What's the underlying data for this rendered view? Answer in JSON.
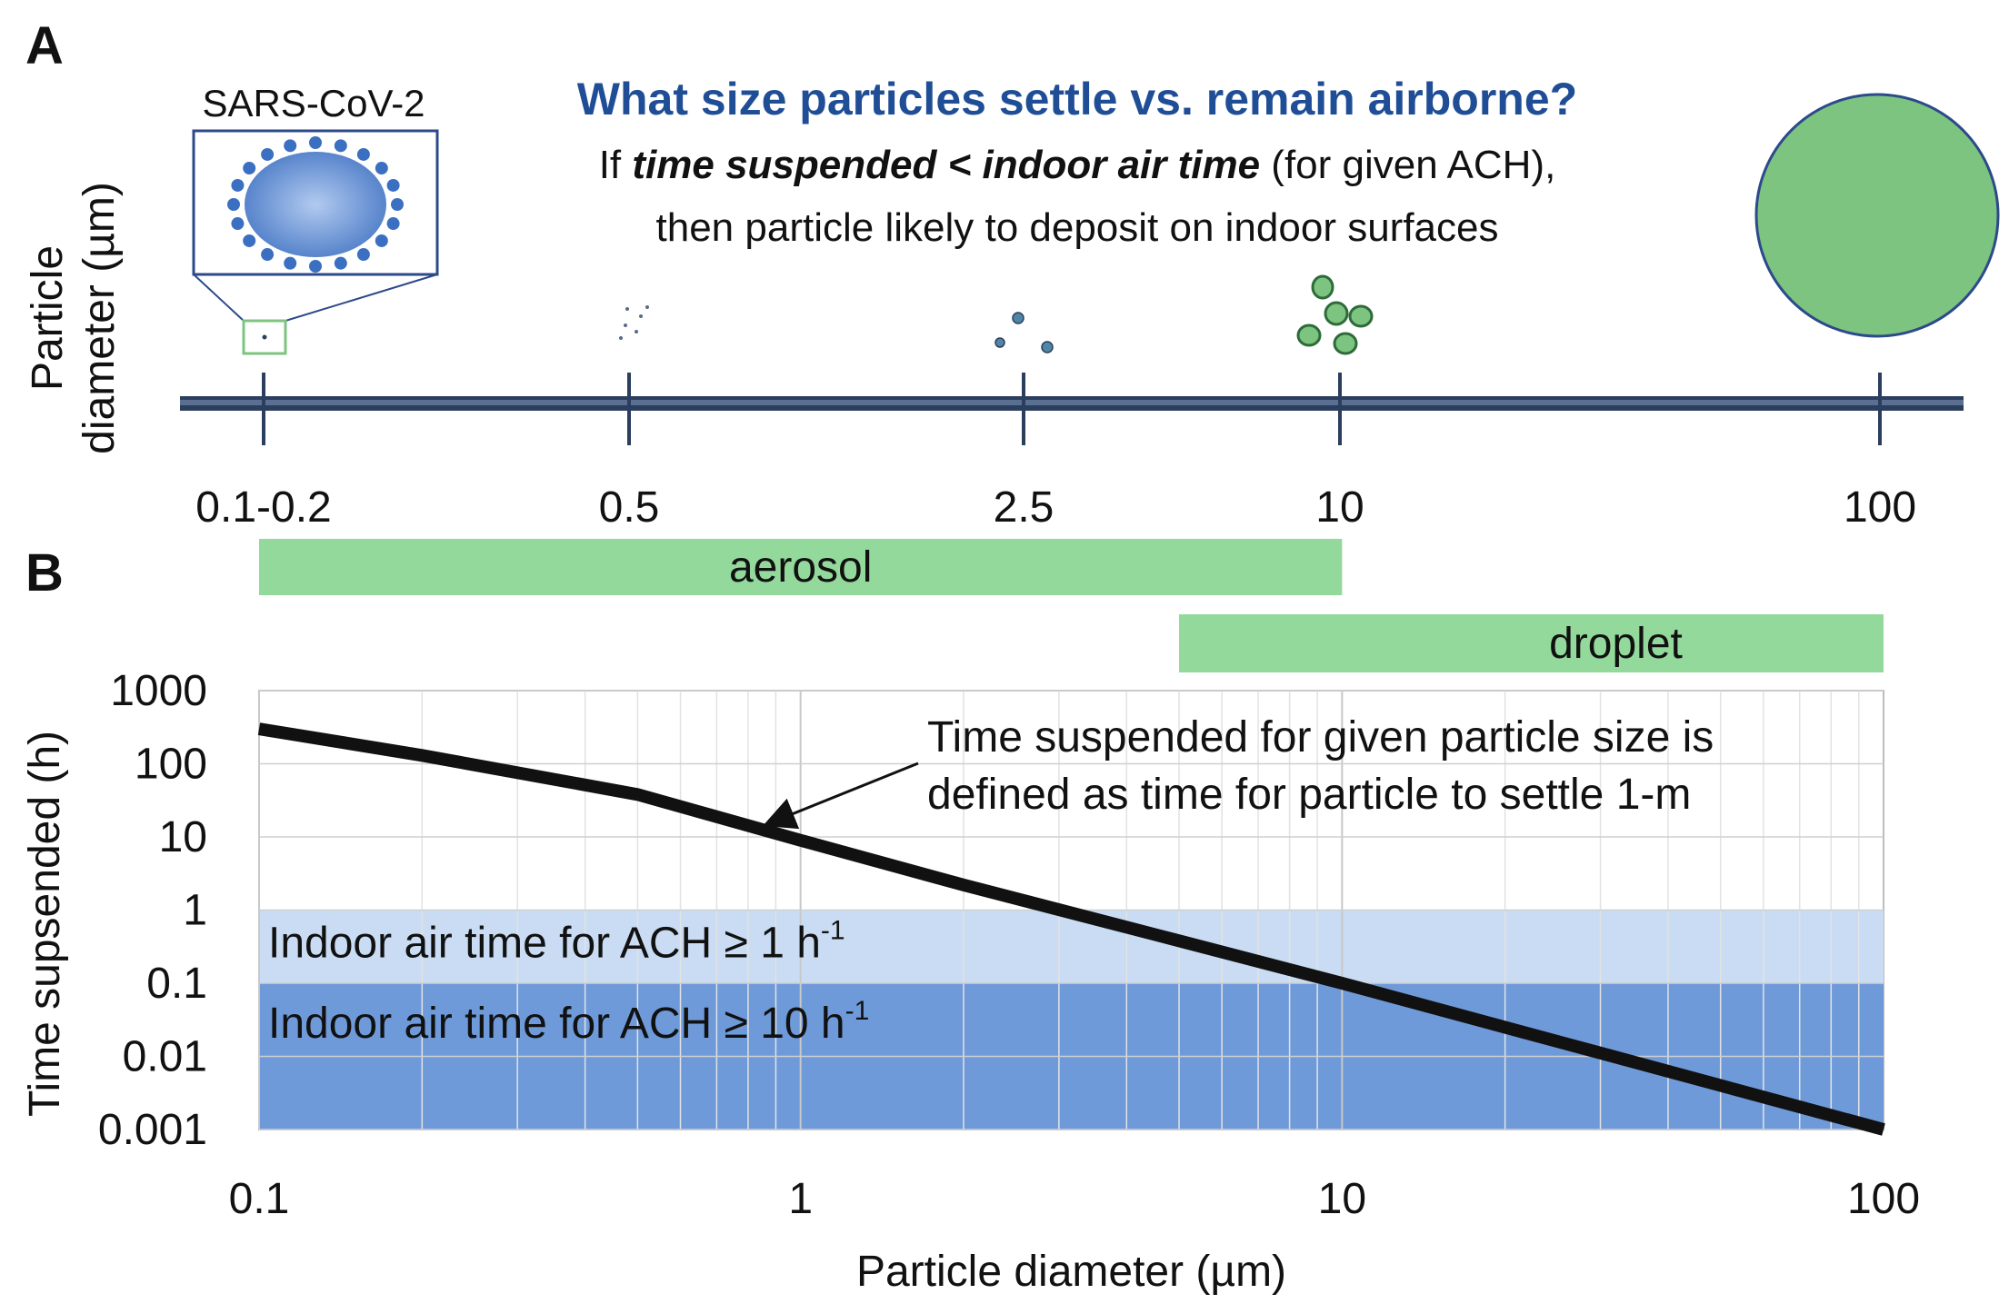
{
  "panel_a": {
    "letter": "A",
    "title": "What size particles settle vs. remain airborne?",
    "subtitle_line1_pre": "If ",
    "subtitle_line1_em": "time suspended < indoor air time",
    "subtitle_line1_post": " (for given ACH),",
    "subtitle_line2": "then particle likely to deposit on indoor surfaces",
    "inset_label": "SARS-CoV-2",
    "axis_label_line1": "Particle",
    "axis_label_line2": "diameter (µm)",
    "ticks": [
      "0.1-0.2",
      "0.5",
      "2.5",
      "10",
      "100"
    ],
    "tick_values": [
      0.15,
      0.5,
      2.5,
      10,
      100
    ],
    "categories": [
      {
        "label": "aerosol",
        "from": 0.1,
        "to": 10
      },
      {
        "label": "droplet",
        "from": 5,
        "to": 100
      }
    ],
    "colors": {
      "axis_line": "#2c3e5e",
      "particle_fill": "#7cc47f",
      "virus": "#3b6fc2",
      "category_bar": "#93d99b",
      "title": "#1f4e96"
    }
  },
  "panel_b": {
    "letter": "B"
  },
  "chart_data": {
    "type": "line",
    "xlabel": "Particle diameter (µm)",
    "ylabel": "Time supsended (h)",
    "xscale": "log",
    "yscale": "log",
    "xlim": [
      0.1,
      100
    ],
    "ylim": [
      0.001,
      1000
    ],
    "x_ticks": [
      "0.1",
      "1",
      "10",
      "100"
    ],
    "y_ticks": [
      "0.001",
      "0.01",
      "0.1",
      "1",
      "10",
      "100",
      "1000"
    ],
    "grid": true,
    "series": [
      {
        "x": [
          0.1,
          0.2,
          0.5,
          1,
          2,
          5,
          10,
          20,
          50,
          100
        ],
        "y": [
          300,
          130,
          38,
          9,
          2.2,
          0.38,
          0.1,
          0.025,
          0.004,
          0.001
        ],
        "color": "#111111"
      }
    ],
    "bands": [
      {
        "label": "Indoor air time for ACH ≥ 1 h",
        "superscript": "-1",
        "ymin": 0.1,
        "ymax": 1,
        "color": "#c9dcf3"
      },
      {
        "label": "Indoor air time for ACH ≥ 10 h",
        "superscript": "-1",
        "ymin": 0.001,
        "ymax": 0.1,
        "color": "#6f9ad9"
      }
    ],
    "annotation": {
      "line1": "Time suspended for given particle size is",
      "line2": "defined as time for particle to settle 1-m",
      "arrow_to": [
        0.85,
        12
      ]
    }
  }
}
